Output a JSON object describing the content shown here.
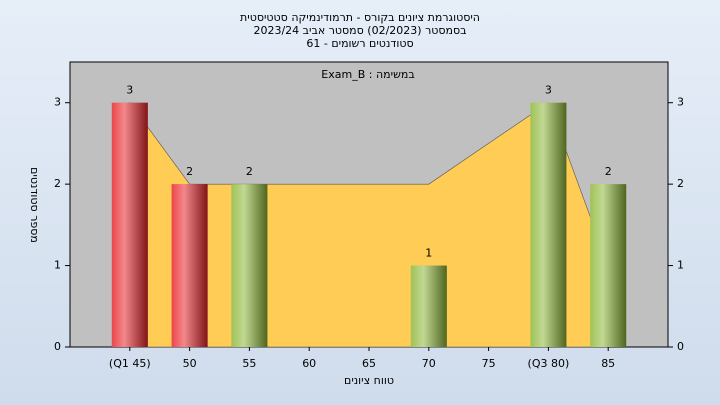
{
  "chart_data": {
    "type": "bar",
    "title": [
      "היסטוגרמת ציונים בקורס - תרמודינמיקה סטטיסטית",
      "בסמסטר  (02/2023)  סמסטר אביב 2023/24",
      "סטודנטים רשומים - 61"
    ],
    "annotation": "Exam_B : במשימה",
    "x_label": "טווח ציונים",
    "y_label": "מספר סטודנטים",
    "categories": [
      "(Q1 45)",
      "50",
      "55",
      "60",
      "65",
      "70",
      "75",
      "(Q3 80)",
      "85"
    ],
    "values": [
      3,
      2,
      2,
      0,
      0,
      1,
      0,
      3,
      2
    ],
    "colors": [
      "#e8262c",
      "#e8262c",
      "#8fb83a",
      "#8fb83a",
      "#8fb83a",
      "#8fb83a",
      "#8fb83a",
      "#8fb83a",
      "#8fb83a"
    ],
    "area_values": [
      3,
      2,
      2,
      2,
      2,
      2,
      2.5,
      3,
      1
    ],
    "area_color": "#ffcc55",
    "ylim": [
      0,
      3.5
    ],
    "yticks": [
      0,
      1,
      2,
      3
    ],
    "y2lim": [
      0,
      3.5
    ],
    "y2ticks": [
      0,
      1,
      2,
      3
    ]
  }
}
